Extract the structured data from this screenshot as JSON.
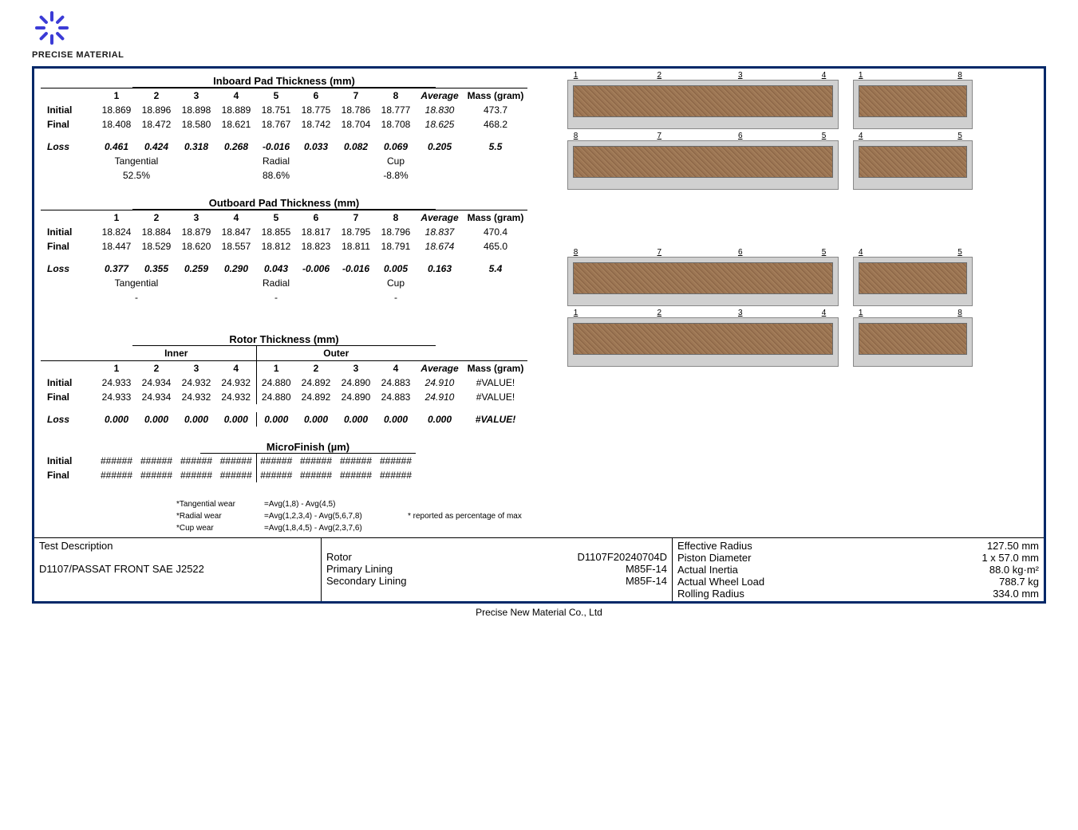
{
  "logo": {
    "company_text": "PRECISE MATERIAL",
    "brand_color": "#3b3bd6"
  },
  "inboard": {
    "title": "Inboard Pad Thickness (mm)",
    "cols": [
      "1",
      "2",
      "3",
      "4",
      "5",
      "6",
      "7",
      "8"
    ],
    "avg_label": "Average",
    "mass_label": "Mass (gram)",
    "rows": [
      {
        "label": "Initial",
        "vals": [
          "18.869",
          "18.896",
          "18.898",
          "18.889",
          "18.751",
          "18.775",
          "18.786",
          "18.777"
        ],
        "avg": "18.830",
        "mass": "473.7"
      },
      {
        "label": "Final",
        "vals": [
          "18.408",
          "18.472",
          "18.580",
          "18.621",
          "18.767",
          "18.742",
          "18.704",
          "18.708"
        ],
        "avg": "18.625",
        "mass": "468.2"
      },
      {
        "label": "Loss",
        "vals": [
          "0.461",
          "0.424",
          "0.318",
          "0.268",
          "-0.016",
          "0.033",
          "0.082",
          "0.069"
        ],
        "avg": "0.205",
        "mass": "5.5",
        "loss": true
      }
    ],
    "wear_labels": [
      "Tangential",
      "Radial",
      "Cup"
    ],
    "wear_vals": [
      "52.5%",
      "88.6%",
      "-8.8%"
    ]
  },
  "outboard": {
    "title": "Outboard Pad Thickness (mm)",
    "cols": [
      "1",
      "2",
      "3",
      "4",
      "5",
      "6",
      "7",
      "8"
    ],
    "avg_label": "Average",
    "mass_label": "Mass (gram)",
    "rows": [
      {
        "label": "Initial",
        "vals": [
          "18.824",
          "18.884",
          "18.879",
          "18.847",
          "18.855",
          "18.817",
          "18.795",
          "18.796"
        ],
        "avg": "18.837",
        "mass": "470.4"
      },
      {
        "label": "Final",
        "vals": [
          "18.447",
          "18.529",
          "18.620",
          "18.557",
          "18.812",
          "18.823",
          "18.811",
          "18.791"
        ],
        "avg": "18.674",
        "mass": "465.0"
      },
      {
        "label": "Loss",
        "vals": [
          "0.377",
          "0.355",
          "0.259",
          "0.290",
          "0.043",
          "-0.006",
          "-0.016",
          "0.005"
        ],
        "avg": "0.163",
        "mass": "5.4",
        "loss": true
      }
    ],
    "wear_labels": [
      "Tangential",
      "Radial",
      "Cup"
    ],
    "wear_vals": [
      "-",
      "-",
      "-"
    ]
  },
  "rotor": {
    "title": "Rotor Thickness (mm)",
    "group_labels": [
      "Inner",
      "Outer"
    ],
    "cols": [
      "1",
      "2",
      "3",
      "4",
      "1",
      "2",
      "3",
      "4"
    ],
    "avg_label": "Average",
    "mass_label": "Mass (gram)",
    "rows": [
      {
        "label": "Initial",
        "vals": [
          "24.933",
          "24.934",
          "24.932",
          "24.932",
          "24.880",
          "24.892",
          "24.890",
          "24.883"
        ],
        "avg": "24.910",
        "mass": "#VALUE!"
      },
      {
        "label": "Final",
        "vals": [
          "24.933",
          "24.934",
          "24.932",
          "24.932",
          "24.880",
          "24.892",
          "24.890",
          "24.883"
        ],
        "avg": "24.910",
        "mass": "#VALUE!"
      },
      {
        "label": "Loss",
        "vals": [
          "0.000",
          "0.000",
          "0.000",
          "0.000",
          "0.000",
          "0.000",
          "0.000",
          "0.000"
        ],
        "avg": "0.000",
        "mass": "#VALUE!",
        "loss": true
      }
    ]
  },
  "micro": {
    "title": "MicroFinish (µm)",
    "rows": [
      {
        "label": "Initial",
        "vals": [
          "######",
          "######",
          "######",
          "######",
          "######",
          "######",
          "######",
          "######"
        ]
      },
      {
        "label": "Final",
        "vals": [
          "######",
          "######",
          "######",
          "######",
          "######",
          "######",
          "######",
          "######"
        ]
      }
    ]
  },
  "notes": {
    "lines": [
      {
        "l": "*Tangential wear",
        "f": "=Avg(1,8) - Avg(4,5)",
        "n": ""
      },
      {
        "l": "*Radial wear",
        "f": "=Avg(1,2,3,4) - Avg(5,6,7,8)",
        "n": "* reported as percentage of max"
      },
      {
        "l": "*Cup wear",
        "f": "=Avg(1,8,4,5) - Avg(2,3,7,6)",
        "n": ""
      }
    ]
  },
  "diagrams": {
    "sets": [
      {
        "wide": [
          "1",
          "2",
          "3",
          "4"
        ],
        "narrow": [
          "1",
          "8"
        ]
      },
      {
        "wide": [
          "8",
          "7",
          "6",
          "5"
        ],
        "narrow": [
          "4",
          "5"
        ]
      },
      {
        "wide": [
          "8",
          "7",
          "6",
          "5"
        ],
        "narrow": [
          "4",
          "5"
        ]
      },
      {
        "wide": [
          "1",
          "2",
          "3",
          "4"
        ],
        "narrow": [
          "1",
          "8"
        ]
      }
    ],
    "friction_color": "#8a7560",
    "backing_color": "#d0d0d0"
  },
  "footer": {
    "test_desc_label": "Test Description",
    "test_desc_value": "D1107/PASSAT FRONT SAE J2522",
    "mid": [
      {
        "l": "Rotor",
        "v": "D1107F20240704D"
      },
      {
        "l": "Primary Lining",
        "v": "M85F-14"
      },
      {
        "l": "Secondary Lining",
        "v": "M85F-14"
      }
    ],
    "right": [
      {
        "l": "Effective Radius",
        "v": "127.50 mm"
      },
      {
        "l": "Piston Diameter",
        "v": "1 x 57.0 mm"
      },
      {
        "l": "Actual Inertia",
        "v": "88.0 kg·m²"
      },
      {
        "l": "Actual Wheel Load",
        "v": "788.7 kg"
      },
      {
        "l": "Rolling Radius",
        "v": "334.0 mm"
      }
    ]
  },
  "doc_footer": "Precise New Material Co., Ltd"
}
